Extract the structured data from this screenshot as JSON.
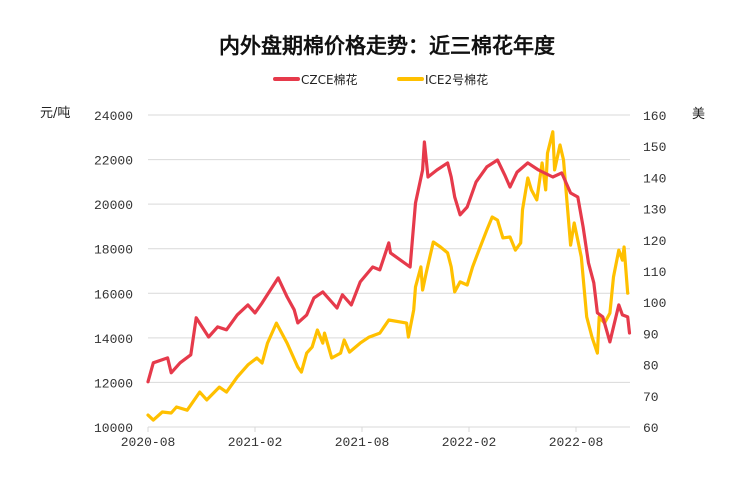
{
  "chart_data": {
    "type": "line",
    "title": "内外盘期棉价格走势：近三棉花年度",
    "ylabel": "元/吨",
    "y2label": "美",
    "x_unit": "months since 2020-08",
    "xlim": [
      0,
      27
    ],
    "x_ticks": [
      {
        "value": 0,
        "label": "2020-08"
      },
      {
        "value": 6,
        "label": "2021-02"
      },
      {
        "value": 12,
        "label": "2021-08"
      },
      {
        "value": 18,
        "label": "2022-02"
      },
      {
        "value": 24,
        "label": "2022-08"
      }
    ],
    "ylim": [
      10000,
      24000
    ],
    "y_ticks": [
      "10000",
      "12000",
      "14000",
      "16000",
      "18000",
      "20000",
      "22000",
      "24000"
    ],
    "y2lim": [
      60,
      160
    ],
    "y2_ticks": [
      "60",
      "70",
      "80",
      "90",
      "100",
      "110",
      "120",
      "130",
      "140",
      "150",
      "160"
    ],
    "grid": true,
    "legend_position": "top-center",
    "series": [
      {
        "name": "CZCE棉花",
        "axis": "left",
        "color": "#E63A4B",
        "points": [
          [
            0,
            12030
          ],
          [
            0.3,
            12880
          ],
          [
            1.1,
            13100
          ],
          [
            1.3,
            12430
          ],
          [
            1.8,
            12880
          ],
          [
            2.4,
            13240
          ],
          [
            2.7,
            14900
          ],
          [
            3.4,
            14040
          ],
          [
            3.9,
            14490
          ],
          [
            4.4,
            14360
          ],
          [
            5.0,
            15030
          ],
          [
            5.6,
            15480
          ],
          [
            6.0,
            15120
          ],
          [
            6.4,
            15570
          ],
          [
            7.3,
            16690
          ],
          [
            7.8,
            15840
          ],
          [
            8.2,
            15260
          ],
          [
            8.4,
            14670
          ],
          [
            8.9,
            15030
          ],
          [
            9.3,
            15790
          ],
          [
            9.8,
            16060
          ],
          [
            10.3,
            15610
          ],
          [
            10.6,
            15340
          ],
          [
            10.9,
            15930
          ],
          [
            11.4,
            15480
          ],
          [
            11.9,
            16510
          ],
          [
            12.6,
            17180
          ],
          [
            13.0,
            17050
          ],
          [
            13.5,
            18260
          ],
          [
            13.6,
            17810
          ],
          [
            14.7,
            17180
          ],
          [
            15.0,
            20050
          ],
          [
            15.4,
            21530
          ],
          [
            15.5,
            22790
          ],
          [
            15.7,
            21220
          ],
          [
            16.2,
            21530
          ],
          [
            16.8,
            21850
          ],
          [
            17.0,
            21220
          ],
          [
            17.2,
            20320
          ],
          [
            17.5,
            19520
          ],
          [
            17.9,
            19870
          ],
          [
            18.4,
            21000
          ],
          [
            19.0,
            21670
          ],
          [
            19.6,
            21980
          ],
          [
            20.0,
            21310
          ],
          [
            20.3,
            20770
          ],
          [
            20.7,
            21440
          ],
          [
            21.3,
            21850
          ],
          [
            21.9,
            21530
          ],
          [
            22.7,
            21220
          ],
          [
            23.2,
            21400
          ],
          [
            23.7,
            20500
          ],
          [
            24.1,
            20320
          ],
          [
            24.4,
            18980
          ],
          [
            24.7,
            17360
          ],
          [
            25.0,
            16470
          ],
          [
            25.2,
            15120
          ],
          [
            25.5,
            14940
          ],
          [
            25.9,
            13820
          ],
          [
            26.4,
            15480
          ],
          [
            26.6,
            15030
          ],
          [
            26.9,
            14940
          ],
          [
            27.0,
            14220
          ]
        ]
      },
      {
        "name": "ICE2号棉花",
        "axis": "right",
        "color": "#FFC000",
        "points": [
          [
            0,
            63.8
          ],
          [
            0.3,
            62.2
          ],
          [
            0.8,
            64.8
          ],
          [
            1.3,
            64.5
          ],
          [
            1.6,
            66.4
          ],
          [
            2.2,
            65.4
          ],
          [
            2.9,
            71.2
          ],
          [
            3.3,
            68.7
          ],
          [
            4.0,
            72.8
          ],
          [
            4.4,
            71.2
          ],
          [
            5.0,
            76.0
          ],
          [
            5.6,
            79.9
          ],
          [
            6.1,
            82.1
          ],
          [
            6.4,
            80.5
          ],
          [
            6.7,
            86.9
          ],
          [
            7.2,
            93.3
          ],
          [
            7.8,
            86.9
          ],
          [
            8.4,
            79.2
          ],
          [
            8.6,
            77.6
          ],
          [
            8.9,
            83.7
          ],
          [
            9.2,
            85.6
          ],
          [
            9.5,
            91.1
          ],
          [
            9.8,
            86.9
          ],
          [
            9.9,
            90.1
          ],
          [
            10.3,
            82.1
          ],
          [
            10.8,
            83.7
          ],
          [
            11.0,
            87.9
          ],
          [
            11.3,
            84.0
          ],
          [
            11.9,
            86.9
          ],
          [
            12.4,
            88.8
          ],
          [
            13.0,
            90.1
          ],
          [
            13.5,
            94.3
          ],
          [
            14.5,
            93.3
          ],
          [
            14.6,
            88.8
          ],
          [
            14.9,
            97.5
          ],
          [
            15.0,
            104.9
          ],
          [
            15.3,
            111.3
          ],
          [
            15.4,
            103.9
          ],
          [
            15.6,
            109.4
          ],
          [
            16.0,
            119.3
          ],
          [
            16.4,
            117.7
          ],
          [
            16.8,
            115.8
          ],
          [
            17.0,
            111.3
          ],
          [
            17.2,
            103.3
          ],
          [
            17.5,
            106.5
          ],
          [
            17.9,
            105.5
          ],
          [
            18.2,
            111.3
          ],
          [
            18.5,
            115.8
          ],
          [
            19.0,
            123.1
          ],
          [
            19.3,
            127.3
          ],
          [
            19.6,
            126.3
          ],
          [
            19.9,
            120.6
          ],
          [
            20.3,
            120.9
          ],
          [
            20.6,
            116.7
          ],
          [
            20.9,
            119.0
          ],
          [
            21.0,
            129.6
          ],
          [
            21.3,
            139.8
          ],
          [
            21.5,
            136.0
          ],
          [
            21.8,
            132.8
          ],
          [
            22.1,
            144.6
          ],
          [
            22.3,
            136.0
          ],
          [
            22.4,
            147.8
          ],
          [
            22.7,
            154.6
          ],
          [
            22.8,
            142.4
          ],
          [
            23.1,
            150.4
          ],
          [
            23.3,
            145.6
          ],
          [
            23.5,
            131.8
          ],
          [
            23.7,
            118.3
          ],
          [
            23.9,
            125.4
          ],
          [
            24.3,
            114.5
          ],
          [
            24.6,
            95.3
          ],
          [
            24.9,
            88.8
          ],
          [
            25.2,
            83.7
          ],
          [
            25.3,
            95.3
          ],
          [
            25.6,
            93.3
          ],
          [
            25.9,
            96.5
          ],
          [
            26.1,
            108.1
          ],
          [
            26.4,
            116.7
          ],
          [
            26.6,
            113.5
          ],
          [
            26.7,
            117.7
          ],
          [
            26.9,
            102.9
          ]
        ]
      }
    ]
  }
}
